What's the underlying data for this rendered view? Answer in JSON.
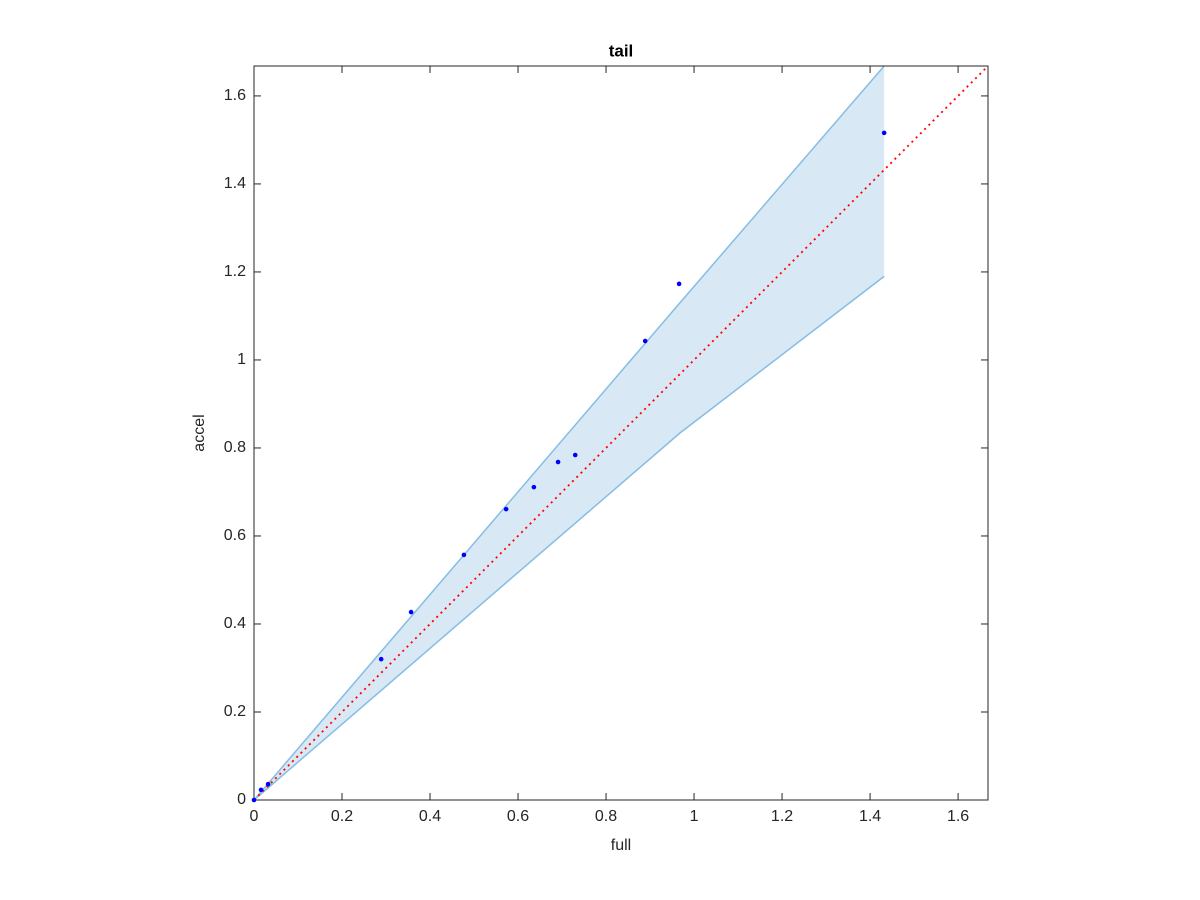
{
  "chart_data": {
    "type": "scatter",
    "title": "tail",
    "x_label": "full",
    "y_label": "accel",
    "xlim": [
      0,
      1.668
    ],
    "ylim": [
      0,
      1.668
    ],
    "xticks": [
      0,
      0.2,
      0.4,
      0.6,
      0.8,
      1,
      1.2,
      1.4,
      1.6
    ],
    "yticks": [
      0,
      0.2,
      0.4,
      0.6,
      0.8,
      1,
      1.2,
      1.4,
      1.6
    ],
    "grid": false,
    "series": [
      {
        "color": "#0000ff",
        "x": [
          0,
          0.016,
          0.032,
          0.289,
          0.357,
          0.477,
          0.573,
          0.636,
          0.691,
          0.73,
          0.889,
          0.966,
          1.432
        ],
        "values": [
          0,
          0.023,
          0.036,
          0.32,
          0.427,
          0.557,
          0.661,
          0.711,
          0.768,
          0.784,
          1.043,
          1.173,
          1.516
        ]
      }
    ],
    "band": {
      "color": "#86bde3",
      "fill": "#d8e8f4",
      "x": [
        0,
        0.968,
        1.432
      ],
      "upper": [
        0,
        1.13,
        1.668
      ],
      "lower": [
        0,
        0.834,
        1.19
      ]
    },
    "reference": {
      "color": "#ff0000",
      "x": [
        0,
        1.668
      ],
      "values": [
        0,
        1.668
      ]
    }
  }
}
